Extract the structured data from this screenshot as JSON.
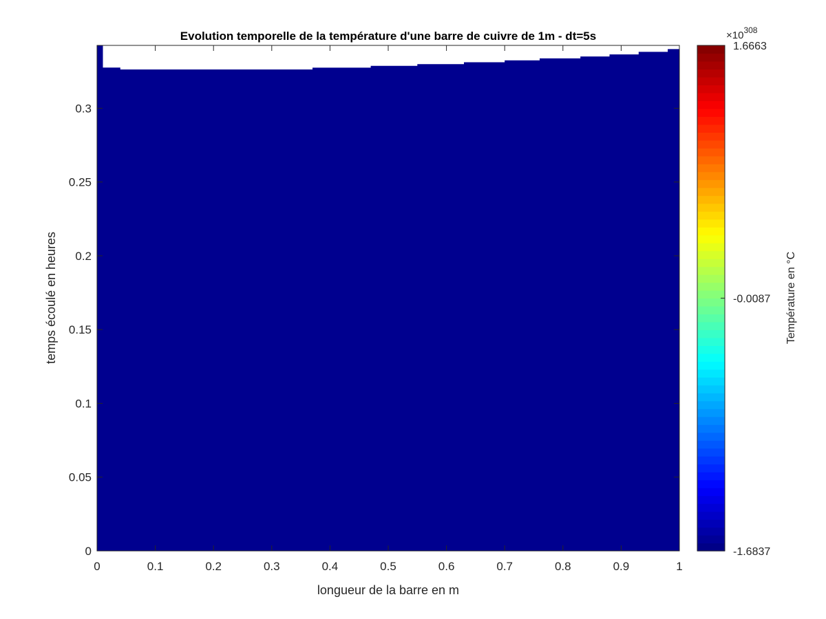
{
  "chart_data": {
    "type": "heatmap",
    "title": "Evolution temporelle de la température d'une barre de cuivre de 1m - dt=5s",
    "xlabel": "longueur de la barre en m",
    "ylabel": "temps écoulé en heures",
    "xlim": [
      0,
      1
    ],
    "ylim": [
      0,
      0.3426
    ],
    "x_ticks": [
      "0",
      "0.1",
      "0.2",
      "0.3",
      "0.4",
      "0.5",
      "0.6",
      "0.7",
      "0.8",
      "0.9",
      "1"
    ],
    "x_tick_values": [
      0,
      0.1,
      0.2,
      0.3,
      0.4,
      0.5,
      0.6,
      0.7,
      0.8,
      0.9,
      1
    ],
    "y_ticks": [
      "0",
      "0.05",
      "0.1",
      "0.15",
      "0.2",
      "0.25",
      "0.3"
    ],
    "y_tick_values": [
      0,
      0.05,
      0.1,
      0.15,
      0.2,
      0.25,
      0.3
    ],
    "grid": false,
    "colormap": "jet",
    "fill_color": "#00008f",
    "colorbar": {
      "label": "Température en °C",
      "exponent_base": "×10",
      "exponent": "308",
      "ticks": [
        "1.6663",
        "-0.0087",
        "-1.6837"
      ],
      "tick_values": [
        1.6663,
        -0.0087,
        -1.6837
      ],
      "clim": [
        -1.6837,
        1.6663
      ]
    },
    "data_extent": {
      "description_note": "",
      "x": [
        0,
        0.01,
        0.04,
        0.22,
        0.37,
        0.47,
        0.55,
        0.63,
        0.7,
        0.76,
        0.83,
        0.88,
        0.93,
        0.98,
        1.0
      ],
      "t_end_hours": [
        0.3426,
        0.3276,
        0.3263,
        0.3263,
        0.3275,
        0.3287,
        0.3299,
        0.3312,
        0.3325,
        0.3338,
        0.3351,
        0.3365,
        0.3382,
        0.3401,
        0.3415
      ]
    }
  }
}
